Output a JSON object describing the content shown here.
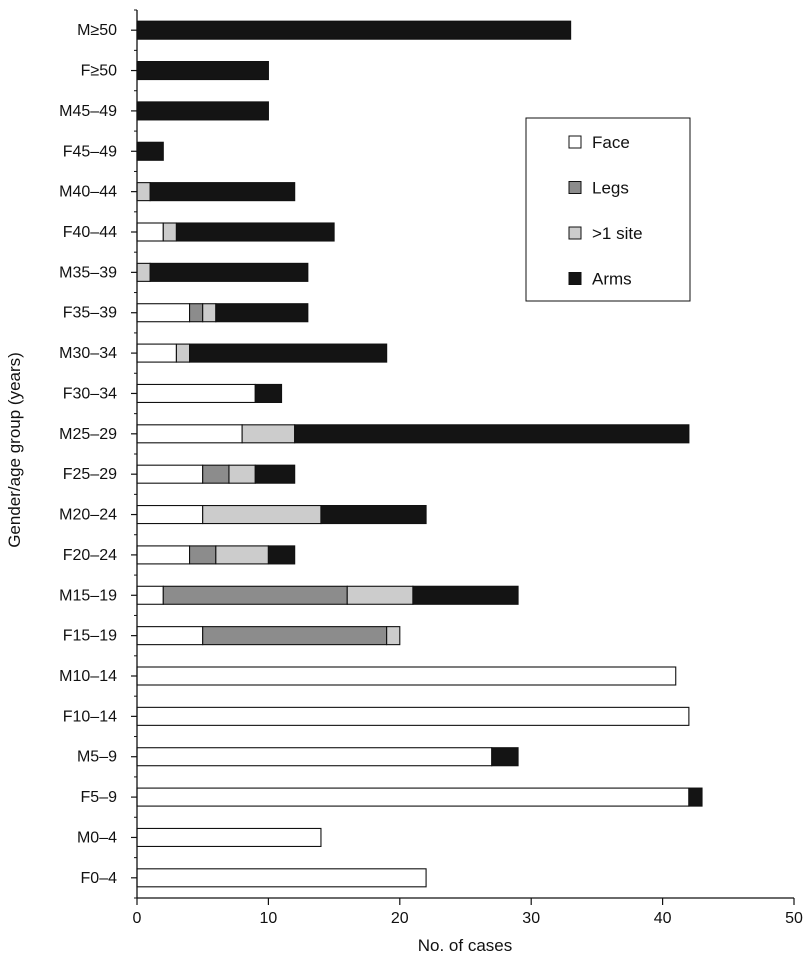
{
  "chart_data": {
    "type": "bar",
    "orientation": "horizontal",
    "stacked": true,
    "xlabel": "No. of cases",
    "ylabel": "Gender/age group (years)",
    "xlim": [
      0,
      50
    ],
    "xticks": [
      0,
      10,
      20,
      30,
      40,
      50
    ],
    "grid": false,
    "legend_position": "right",
    "categories": [
      "M≥50",
      "F≥50",
      "M45–49",
      "F45–49",
      "M40–44",
      "F40–44",
      "M35–39",
      "F35–39",
      "M30–34",
      "F30–34",
      "M25–29",
      "F25–29",
      "M20–24",
      "F20–24",
      "M15–19",
      "F15–19",
      "M10–14",
      "F10–14",
      "M5–9",
      "F5–9",
      "M0–4",
      "F0–4"
    ],
    "series": [
      {
        "name": "Face",
        "color": "#ffffff",
        "values": [
          0,
          0,
          0,
          0,
          0,
          2,
          0,
          4,
          3,
          9,
          8,
          5,
          5,
          4,
          2,
          5,
          41,
          42,
          27,
          42,
          14,
          22
        ]
      },
      {
        "name": "Legs",
        "color": "#8c8c8c",
        "values": [
          0,
          0,
          0,
          0,
          0,
          0,
          0,
          1,
          0,
          0,
          0,
          2,
          0,
          2,
          14,
          14,
          0,
          0,
          0,
          0,
          0,
          0
        ]
      },
      {
        "name": ">1 site",
        "color": "#cccccc",
        "values": [
          0,
          0,
          0,
          0,
          1,
          1,
          1,
          1,
          1,
          0,
          4,
          2,
          9,
          4,
          5,
          1,
          0,
          0,
          0,
          0,
          0,
          0
        ]
      },
      {
        "name": "Arms",
        "color": "#141414",
        "values": [
          33,
          10,
          10,
          2,
          11,
          12,
          12,
          7,
          15,
          2,
          30,
          3,
          8,
          2,
          8,
          0,
          0,
          0,
          2,
          1,
          0,
          0
        ]
      }
    ]
  }
}
